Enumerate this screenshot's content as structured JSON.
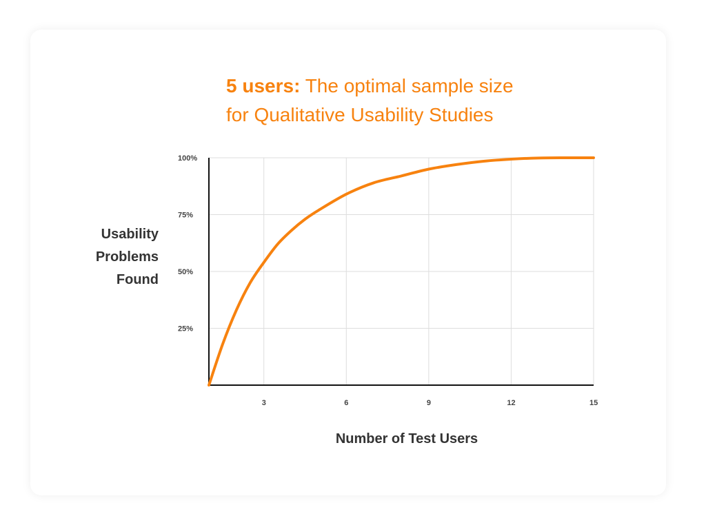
{
  "chart_data": {
    "type": "line",
    "title_bold": "5 users:",
    "title_rest": "The optimal sample size for Qualitative Usability Studies",
    "title_line1_rest": "The optimal sample size",
    "title_line2": "for Qualitative Usability Studies",
    "ylabel_lines": [
      "Usability",
      "Problems",
      "Found"
    ],
    "xlabel": "Number of Test Users",
    "xlim": [
      1,
      15
    ],
    "ylim": [
      0,
      100
    ],
    "x_ticks": [
      3,
      6,
      9,
      12,
      15
    ],
    "x_tick_labels": [
      "3",
      "6",
      "9",
      "12",
      "15"
    ],
    "y_ticks": [
      25,
      50,
      75,
      100
    ],
    "y_tick_labels": [
      "25%",
      "50%",
      "75%",
      "100%"
    ],
    "grid": true,
    "line_color": "#f7820f",
    "series": [
      {
        "x": [
          1,
          1.5,
          2,
          2.5,
          3,
          3.5,
          4,
          4.5,
          5,
          6,
          7,
          8,
          9,
          10,
          11,
          12,
          13,
          14,
          15
        ],
        "values": [
          0,
          18,
          33,
          45,
          54,
          62,
          68,
          73,
          77,
          84,
          89,
          92,
          95,
          97,
          98.5,
          99.4,
          99.9,
          100,
          100
        ]
      }
    ]
  },
  "colors": {
    "title": "#f7820f",
    "axis": "#111111",
    "grid": "#dddddd",
    "label": "#333333"
  }
}
